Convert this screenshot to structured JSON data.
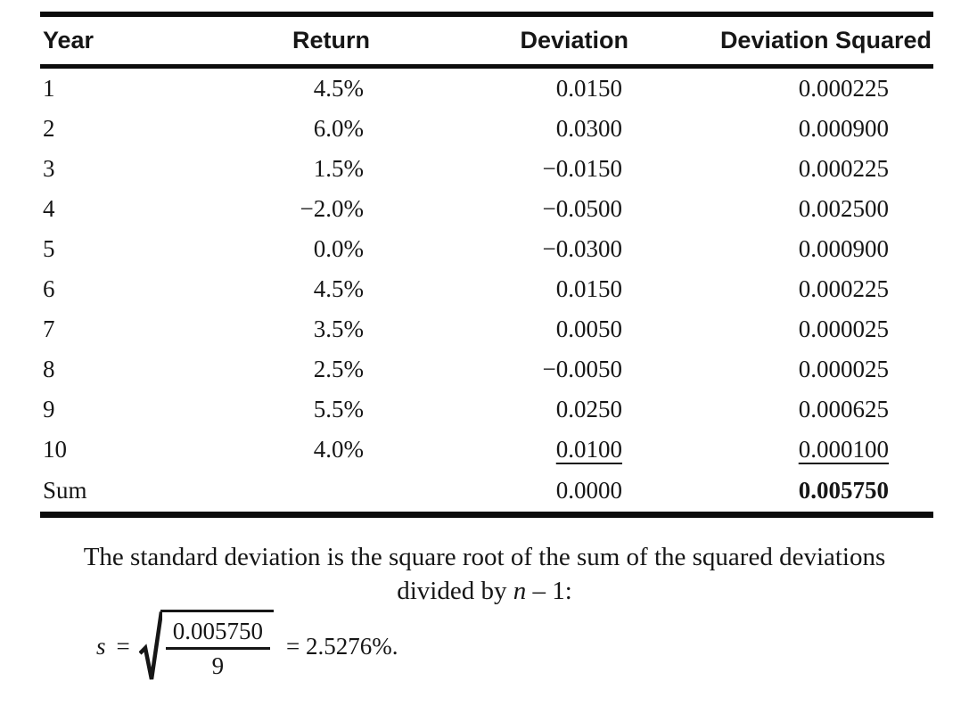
{
  "page": {
    "background": "#ffffff",
    "text_color": "#161616",
    "rule_color": "#0c0c0c"
  },
  "table": {
    "columns": [
      "Year",
      "Return",
      "Deviation",
      "Deviation Squared"
    ],
    "rows": [
      {
        "year": "1",
        "return": "4.5%",
        "deviation": "0.0150",
        "deviation_squared": "0.000225",
        "underline": false
      },
      {
        "year": "2",
        "return": "6.0%",
        "deviation": "0.0300",
        "deviation_squared": "0.000900",
        "underline": false
      },
      {
        "year": "3",
        "return": "1.5%",
        "deviation": "−0.0150",
        "deviation_squared": "0.000225",
        "underline": false
      },
      {
        "year": "4",
        "return": "−2.0%",
        "deviation": "−0.0500",
        "deviation_squared": "0.002500",
        "underline": false
      },
      {
        "year": "5",
        "return": "0.0%",
        "deviation": "−0.0300",
        "deviation_squared": "0.000900",
        "underline": false
      },
      {
        "year": "6",
        "return": "4.5%",
        "deviation": "0.0150",
        "deviation_squared": "0.000225",
        "underline": false
      },
      {
        "year": "7",
        "return": "3.5%",
        "deviation": "0.0050",
        "deviation_squared": "0.000025",
        "underline": false
      },
      {
        "year": "8",
        "return": "2.5%",
        "deviation": "−0.0050",
        "deviation_squared": "0.000025",
        "underline": false
      },
      {
        "year": "9",
        "return": "5.5%",
        "deviation": "0.0250",
        "deviation_squared": "0.000625",
        "underline": false
      },
      {
        "year": "10",
        "return": "4.0%",
        "deviation": "0.0100",
        "deviation_squared": "0.000100",
        "underline": true
      }
    ],
    "sum": {
      "label": "Sum",
      "return": "",
      "deviation": "0.0000",
      "deviation_squared": "0.005750"
    }
  },
  "note": {
    "line1": "The standard deviation is the square root of the sum of the squared deviations",
    "line2_pre": "divided by ",
    "line2_var": "n",
    "line2_post": " – 1:"
  },
  "formula": {
    "variable": "s",
    "equals": "=",
    "numerator": "0.005750",
    "denominator": "9",
    "result": "= 2.5276%."
  }
}
